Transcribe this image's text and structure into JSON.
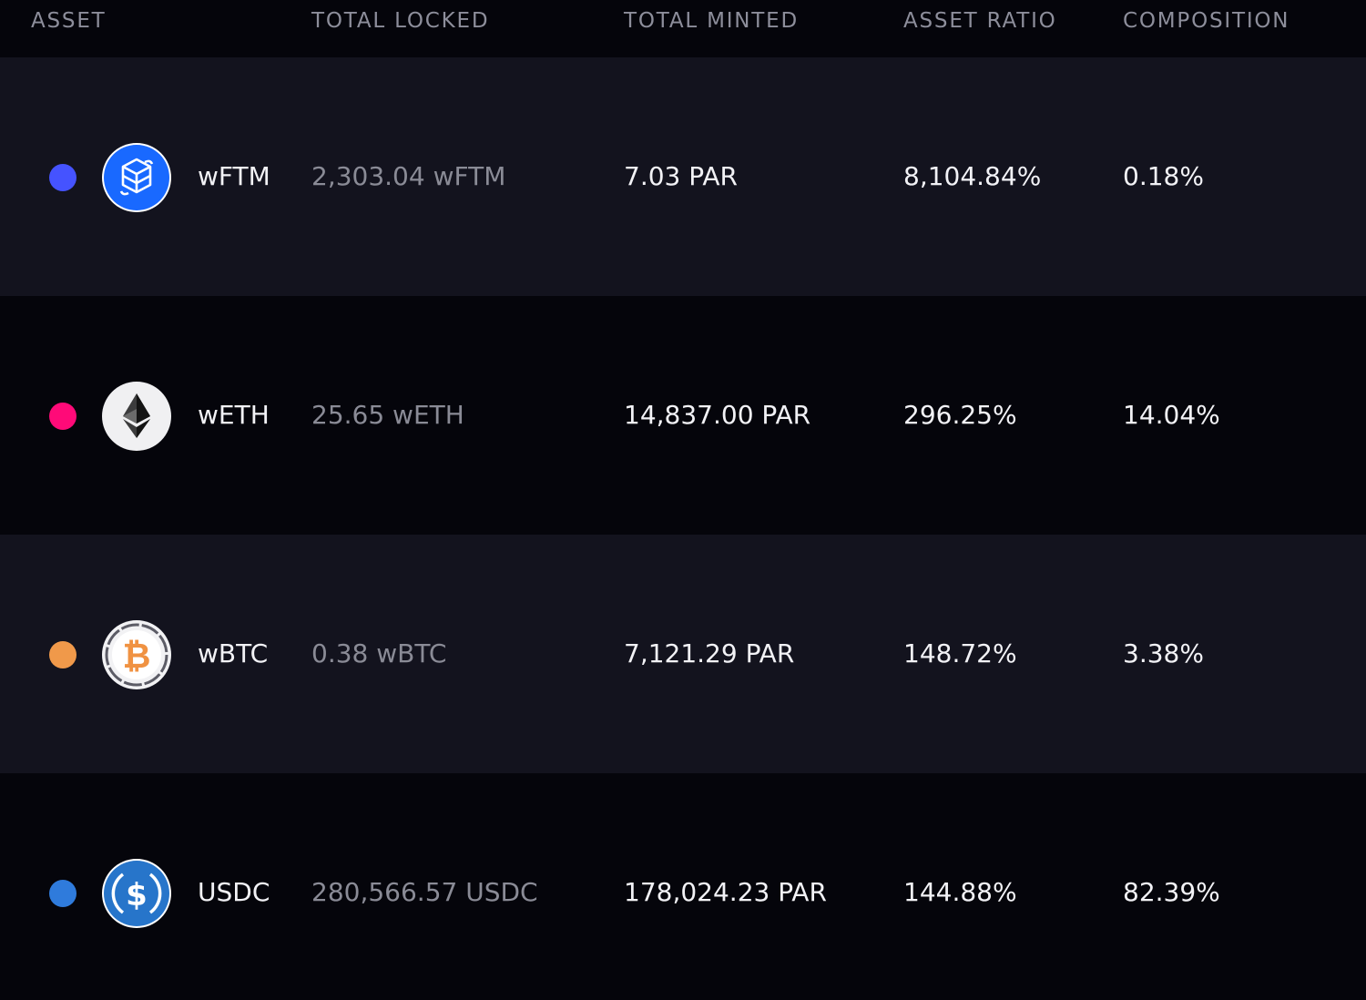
{
  "header": {
    "asset": "ASSET",
    "total_locked": "TOTAL LOCKED",
    "total_minted": "TOTAL MINTED",
    "asset_ratio": "ASSET RATIO",
    "composition": "COMPOSITION"
  },
  "rows": [
    {
      "dot_color": "#4553ff",
      "icon": "fantom-icon",
      "name": "wFTM",
      "total_locked": "2,303.04 wFTM",
      "total_minted": "7.03 PAR",
      "asset_ratio": "8,104.84%",
      "composition": "0.18%"
    },
    {
      "dot_color": "#ff0a78",
      "icon": "ethereum-icon",
      "name": "wETH",
      "total_locked": "25.65 wETH",
      "total_minted": "14,837.00 PAR",
      "asset_ratio": "296.25%",
      "composition": "14.04%"
    },
    {
      "dot_color": "#f0994a",
      "icon": "bitcoin-icon",
      "name": "wBTC",
      "total_locked": "0.38 wBTC",
      "total_minted": "7,121.29 PAR",
      "asset_ratio": "148.72%",
      "composition": "3.38%"
    },
    {
      "dot_color": "#2f7bdc",
      "icon": "usdc-icon",
      "name": "USDC",
      "total_locked": "280,566.57 USDC",
      "total_minted": "178,024.23 PAR",
      "asset_ratio": "144.88%",
      "composition": "82.39%"
    }
  ]
}
